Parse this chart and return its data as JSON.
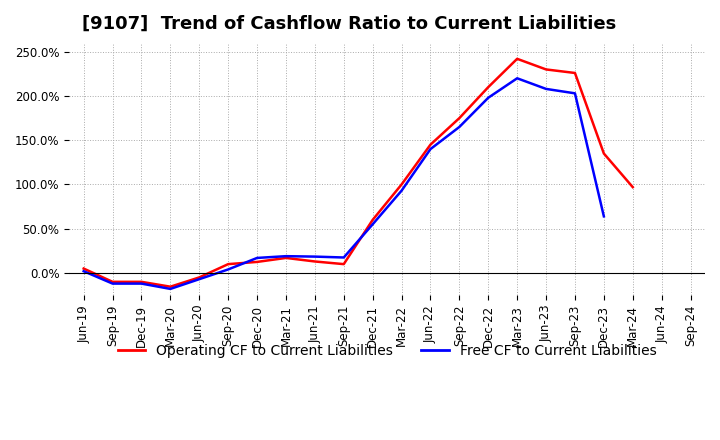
{
  "title": "[9107]  Trend of Cashflow Ratio to Current Liabilities",
  "x_labels": [
    "Jun-19",
    "Sep-19",
    "Dec-19",
    "Mar-20",
    "Jun-20",
    "Sep-20",
    "Dec-20",
    "Mar-21",
    "Jun-21",
    "Sep-21",
    "Dec-21",
    "Mar-22",
    "Jun-22",
    "Sep-22",
    "Dec-22",
    "Mar-23",
    "Jun-23",
    "Sep-23",
    "Dec-23",
    "Mar-24",
    "Jun-24",
    "Sep-24"
  ],
  "operating_cf": [
    0.05,
    -0.1,
    -0.1,
    -0.155,
    -0.05,
    0.1,
    0.125,
    0.17,
    0.13,
    0.1,
    0.6,
    1.0,
    1.45,
    1.75,
    2.1,
    2.42,
    2.3,
    2.26,
    1.35,
    0.97,
    null,
    null
  ],
  "free_cf": [
    0.02,
    -0.12,
    -0.12,
    -0.18,
    -0.07,
    0.04,
    0.17,
    0.19,
    0.185,
    0.175,
    0.55,
    0.93,
    1.4,
    1.65,
    1.98,
    2.2,
    2.08,
    2.03,
    0.64,
    null,
    null,
    null
  ],
  "ylim": [
    -0.25,
    2.6
  ],
  "yticks": [
    0.0,
    0.5,
    1.0,
    1.5,
    2.0,
    2.5
  ],
  "ytick_labels": [
    "0.0%",
    "50.0%",
    "100.0%",
    "150.0%",
    "200.0%",
    "250.0%"
  ],
  "operating_color": "#FF0000",
  "free_color": "#0000FF",
  "background_color": "#FFFFFF",
  "plot_bg_color": "#FFFFFF",
  "grid_color": "#AAAAAA",
  "title_fontsize": 13,
  "legend_fontsize": 10,
  "tick_fontsize": 8.5
}
